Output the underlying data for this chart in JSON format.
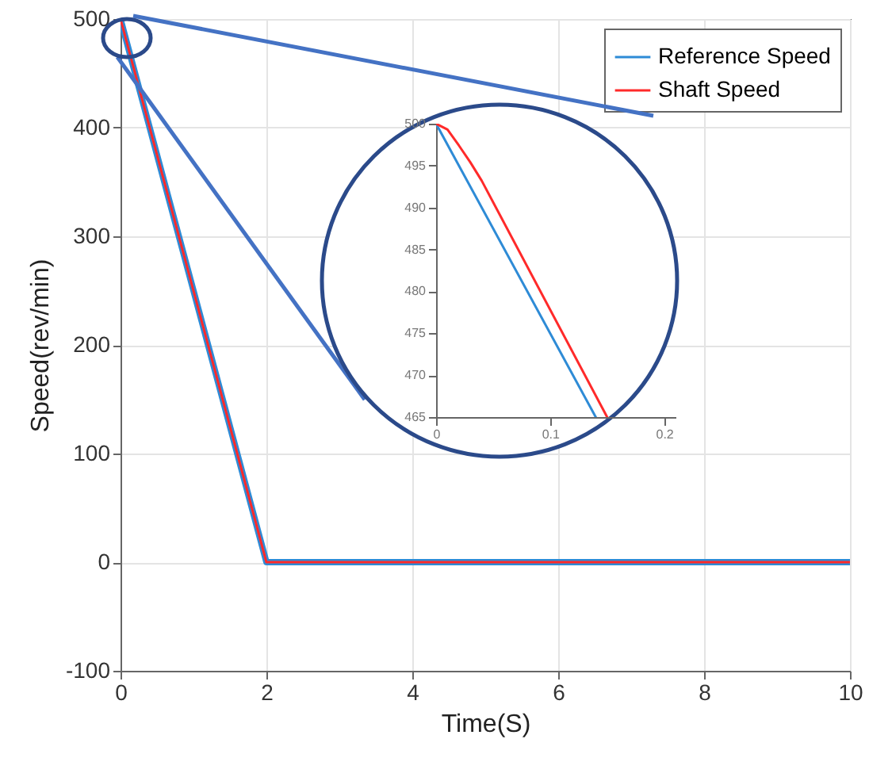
{
  "chart_data": [
    {
      "type": "line",
      "xlabel": "Time(S)",
      "ylabel": "Speed(rev/min)",
      "xlim": [
        0,
        10
      ],
      "xticks": [
        0,
        2,
        4,
        6,
        8,
        10
      ],
      "ylim": [
        -100,
        500
      ],
      "yticks": [
        -100,
        0,
        100,
        200,
        300,
        400,
        500
      ],
      "grid": true,
      "legend": "top right",
      "line_style": "solid",
      "series": [
        {
          "name": "Reference Speed",
          "color": "#2e8bd6",
          "x": [
            0,
            2,
            10
          ],
          "values": [
            500,
            0,
            0
          ]
        },
        {
          "name": "Shaft Speed",
          "color": "#ff2a2a",
          "x": [
            0,
            2,
            10
          ],
          "values": [
            500,
            0,
            0
          ]
        }
      ]
    },
    {
      "type": "line",
      "xlim": [
        0,
        0.21
      ],
      "xticks": [
        0,
        0.1,
        0.2
      ],
      "ylim": [
        465,
        500
      ],
      "yticks": [
        465,
        470,
        475,
        480,
        485,
        490,
        495,
        500
      ],
      "grid": false,
      "line_style": "solid",
      "series": [
        {
          "color": "#2e8bd6",
          "x": [
            0,
            0.14
          ],
          "values": [
            500,
            465
          ]
        },
        {
          "color": "#ff2a2a",
          "x": [
            0,
            0.01,
            0.02,
            0.03,
            0.04,
            0.15
          ],
          "values": [
            500,
            499.3,
            497.4,
            495.4,
            493.2,
            465
          ]
        }
      ]
    }
  ]
}
